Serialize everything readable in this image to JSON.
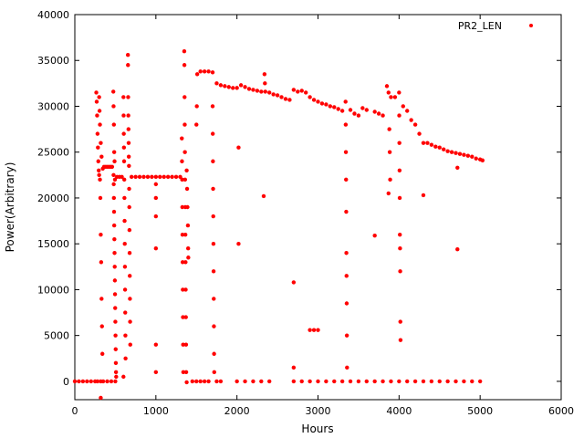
{
  "chart_data": {
    "type": "scatter",
    "xlabel": "Hours",
    "ylabel": "Power(Arbitrary)",
    "xlim": [
      0,
      6000
    ],
    "ylim": [
      -2000,
      40000
    ],
    "x_ticks": [
      0,
      1000,
      2000,
      3000,
      4000,
      5000,
      6000
    ],
    "y_ticks": [
      0,
      5000,
      10000,
      15000,
      20000,
      25000,
      30000,
      35000,
      40000
    ],
    "x_tick_labels": [
      "0",
      "1000",
      "2000",
      "3000",
      "4000",
      "5000",
      "6000"
    ],
    "y_tick_labels": [
      "0",
      "5000",
      "10000",
      "15000",
      "20000",
      "25000",
      "30000",
      "35000",
      "40000"
    ],
    "grid": false,
    "legend_position": "top-right",
    "colors": {
      "series": "#ff0000",
      "axis": "#000000"
    },
    "series": [
      {
        "name": "PR2_LEN",
        "marker": "point",
        "points": [
          [
            0,
            0
          ],
          [
            50,
            0
          ],
          [
            100,
            0
          ],
          [
            150,
            0
          ],
          [
            200,
            0
          ],
          [
            250,
            0
          ],
          [
            280,
            0
          ],
          [
            320,
            0
          ],
          [
            350,
            0
          ],
          [
            400,
            0
          ],
          [
            450,
            0
          ],
          [
            500,
            0
          ],
          [
            265,
            31500
          ],
          [
            270,
            30500
          ],
          [
            275,
            29000
          ],
          [
            280,
            27000
          ],
          [
            285,
            25500
          ],
          [
            290,
            24000
          ],
          [
            295,
            23000
          ],
          [
            300,
            22500
          ],
          [
            310,
            22000
          ],
          [
            315,
            20000
          ],
          [
            320,
            16000
          ],
          [
            325,
            13000
          ],
          [
            330,
            9000
          ],
          [
            335,
            6000
          ],
          [
            340,
            3000
          ],
          [
            300,
            31000
          ],
          [
            305,
            29500
          ],
          [
            310,
            28000
          ],
          [
            320,
            26000
          ],
          [
            330,
            24500
          ],
          [
            345,
            23200
          ],
          [
            360,
            23400
          ],
          [
            380,
            23400
          ],
          [
            400,
            23400
          ],
          [
            420,
            23400
          ],
          [
            440,
            23400
          ],
          [
            460,
            23400
          ],
          [
            478,
            22500
          ],
          [
            480,
            21500
          ],
          [
            482,
            20000
          ],
          [
            484,
            18500
          ],
          [
            486,
            17000
          ],
          [
            488,
            15500
          ],
          [
            490,
            14000
          ],
          [
            492,
            12500
          ],
          [
            494,
            11000
          ],
          [
            496,
            9500
          ],
          [
            498,
            8000
          ],
          [
            500,
            6500
          ],
          [
            502,
            5000
          ],
          [
            504,
            3500
          ],
          [
            506,
            2000
          ],
          [
            508,
            1000
          ],
          [
            510,
            500
          ],
          [
            475,
            31600
          ],
          [
            478,
            30000
          ],
          [
            482,
            28000
          ],
          [
            486,
            25000
          ],
          [
            490,
            24000
          ],
          [
            495,
            22000
          ],
          [
            520,
            22300
          ],
          [
            550,
            22300
          ],
          [
            580,
            22300
          ],
          [
            600,
            31000
          ],
          [
            602,
            29000
          ],
          [
            604,
            27000
          ],
          [
            606,
            25500
          ],
          [
            608,
            24000
          ],
          [
            610,
            22000
          ],
          [
            612,
            20000
          ],
          [
            614,
            17500
          ],
          [
            616,
            15000
          ],
          [
            618,
            12500
          ],
          [
            620,
            10000
          ],
          [
            622,
            7500
          ],
          [
            624,
            5000
          ],
          [
            626,
            2500
          ],
          [
            655,
            35600
          ],
          [
            656,
            34500
          ],
          [
            658,
            31000
          ],
          [
            660,
            29000
          ],
          [
            662,
            27500
          ],
          [
            664,
            26000
          ],
          [
            666,
            24500
          ],
          [
            668,
            23500
          ],
          [
            670,
            21000
          ],
          [
            672,
            19000
          ],
          [
            674,
            16500
          ],
          [
            676,
            14000
          ],
          [
            678,
            11500
          ],
          [
            680,
            9000
          ],
          [
            682,
            6500
          ],
          [
            684,
            4000
          ],
          [
            700,
            22300
          ],
          [
            750,
            22300
          ],
          [
            800,
            22300
          ],
          [
            850,
            22300
          ],
          [
            900,
            22300
          ],
          [
            950,
            22300
          ],
          [
            1000,
            22300
          ],
          [
            1050,
            22300
          ],
          [
            1100,
            22300
          ],
          [
            1150,
            22300
          ],
          [
            1200,
            22300
          ],
          [
            1250,
            22300
          ],
          [
            1300,
            22300
          ],
          [
            1000,
            1000
          ],
          [
            1000,
            4000
          ],
          [
            1000,
            14500
          ],
          [
            1000,
            18000
          ],
          [
            1000,
            20000
          ],
          [
            1000,
            21500
          ],
          [
            1320,
            26500
          ],
          [
            1322,
            24000
          ],
          [
            1324,
            22000
          ],
          [
            1326,
            19000
          ],
          [
            1328,
            16000
          ],
          [
            1330,
            13000
          ],
          [
            1332,
            10000
          ],
          [
            1334,
            7000
          ],
          [
            1336,
            4000
          ],
          [
            1338,
            1000
          ],
          [
            1350,
            36000
          ],
          [
            1352,
            34500
          ],
          [
            1354,
            31000
          ],
          [
            1356,
            28000
          ],
          [
            1358,
            25000
          ],
          [
            1360,
            22000
          ],
          [
            1362,
            19000
          ],
          [
            1364,
            16000
          ],
          [
            1366,
            13000
          ],
          [
            1368,
            10000
          ],
          [
            1370,
            7000
          ],
          [
            1372,
            4000
          ],
          [
            1374,
            1000
          ],
          [
            1380,
            23000
          ],
          [
            1385,
            21000
          ],
          [
            1390,
            19000
          ],
          [
            1395,
            17000
          ],
          [
            1398,
            14500
          ],
          [
            1400,
            13500
          ],
          [
            1450,
            0
          ],
          [
            1500,
            0
          ],
          [
            1550,
            0
          ],
          [
            1600,
            0
          ],
          [
            1650,
            0
          ],
          [
            1500,
            28000
          ],
          [
            1505,
            30000
          ],
          [
            1510,
            33500
          ],
          [
            1550,
            33800
          ],
          [
            1600,
            33800
          ],
          [
            1650,
            33800
          ],
          [
            1700,
            33700
          ],
          [
            1700,
            30000
          ],
          [
            1702,
            27000
          ],
          [
            1704,
            24000
          ],
          [
            1706,
            21000
          ],
          [
            1708,
            18000
          ],
          [
            1710,
            15000
          ],
          [
            1712,
            12000
          ],
          [
            1714,
            9000
          ],
          [
            1716,
            6000
          ],
          [
            1718,
            3000
          ],
          [
            1720,
            1000
          ],
          [
            1750,
            32500
          ],
          [
            1800,
            32300
          ],
          [
            1850,
            32200
          ],
          [
            1900,
            32100
          ],
          [
            1950,
            32000
          ],
          [
            2000,
            32000
          ],
          [
            2050,
            32300
          ],
          [
            2100,
            32100
          ],
          [
            2150,
            31900
          ],
          [
            2200,
            31800
          ],
          [
            2250,
            31700
          ],
          [
            2300,
            31600
          ],
          [
            2340,
            33500
          ],
          [
            2345,
            32500
          ],
          [
            2350,
            31600
          ],
          [
            2400,
            31500
          ],
          [
            2450,
            31300
          ],
          [
            2500,
            31200
          ],
          [
            2550,
            31000
          ],
          [
            2600,
            30800
          ],
          [
            2650,
            30700
          ],
          [
            2700,
            31800
          ],
          [
            2750,
            31600
          ],
          [
            2800,
            31700
          ],
          [
            2850,
            31500
          ],
          [
            2900,
            31000
          ],
          [
            2950,
            30700
          ],
          [
            3000,
            30500
          ],
          [
            3050,
            30300
          ],
          [
            3100,
            30200
          ],
          [
            3150,
            30000
          ],
          [
            3200,
            29900
          ],
          [
            3250,
            29700
          ],
          [
            3300,
            29500
          ],
          [
            2020,
            25500
          ],
          [
            2020,
            15000
          ],
          [
            2330,
            20200
          ],
          [
            2700,
            10800
          ],
          [
            2700,
            1500
          ],
          [
            2900,
            5600
          ],
          [
            2950,
            5600
          ],
          [
            3000,
            5600
          ],
          [
            3340,
            30500
          ],
          [
            3342,
            28000
          ],
          [
            3344,
            25000
          ],
          [
            3346,
            22000
          ],
          [
            3348,
            18500
          ],
          [
            3350,
            14000
          ],
          [
            3352,
            11500
          ],
          [
            3354,
            8500
          ],
          [
            3356,
            5000
          ],
          [
            3358,
            1500
          ],
          [
            3400,
            29600
          ],
          [
            3450,
            29200
          ],
          [
            3500,
            29000
          ],
          [
            3550,
            29800
          ],
          [
            3600,
            29600
          ],
          [
            3700,
            29400
          ],
          [
            3750,
            29200
          ],
          [
            3800,
            29000
          ],
          [
            3850,
            32200
          ],
          [
            3870,
            31500
          ],
          [
            3900,
            31000
          ],
          [
            3950,
            31000
          ],
          [
            3880,
            27500
          ],
          [
            3885,
            25000
          ],
          [
            3890,
            22000
          ],
          [
            3870,
            20500
          ],
          [
            4000,
            31500
          ],
          [
            4002,
            29000
          ],
          [
            4004,
            26000
          ],
          [
            4006,
            23000
          ],
          [
            4008,
            20000
          ],
          [
            4010,
            16000
          ],
          [
            4012,
            14500
          ],
          [
            4014,
            12000
          ],
          [
            4016,
            6500
          ],
          [
            4018,
            4500
          ],
          [
            4050,
            30000
          ],
          [
            4100,
            29500
          ],
          [
            4150,
            28500
          ],
          [
            4200,
            28000
          ],
          [
            4250,
            27000
          ],
          [
            4300,
            26000
          ],
          [
            4350,
            26000
          ],
          [
            4400,
            25800
          ],
          [
            4450,
            25600
          ],
          [
            4500,
            25500
          ],
          [
            4550,
            25300
          ],
          [
            4600,
            25100
          ],
          [
            4650,
            25000
          ],
          [
            4700,
            24900
          ],
          [
            4750,
            24800
          ],
          [
            4800,
            24700
          ],
          [
            4850,
            24600
          ],
          [
            4900,
            24500
          ],
          [
            4950,
            24300
          ],
          [
            5000,
            24200
          ],
          [
            5030,
            24100
          ],
          [
            3700,
            15900
          ],
          [
            4300,
            20300
          ],
          [
            4720,
            14400
          ],
          [
            4720,
            23300
          ],
          [
            1750,
            0
          ],
          [
            1800,
            0
          ],
          [
            2000,
            0
          ],
          [
            2100,
            0
          ],
          [
            2200,
            0
          ],
          [
            2300,
            0
          ],
          [
            2400,
            0
          ],
          [
            2700,
            0
          ],
          [
            2800,
            0
          ],
          [
            2900,
            0
          ],
          [
            3000,
            0
          ],
          [
            3100,
            0
          ],
          [
            3200,
            0
          ],
          [
            3300,
            0
          ],
          [
            3400,
            0
          ],
          [
            3500,
            0
          ],
          [
            3600,
            0
          ],
          [
            3700,
            0
          ],
          [
            3800,
            0
          ],
          [
            3900,
            0
          ],
          [
            4000,
            0
          ],
          [
            4100,
            0
          ],
          [
            4200,
            0
          ],
          [
            4300,
            0
          ],
          [
            4400,
            0
          ],
          [
            4500,
            0
          ],
          [
            4600,
            0
          ],
          [
            4700,
            0
          ],
          [
            4800,
            0
          ],
          [
            4900,
            0
          ],
          [
            5000,
            0
          ],
          [
            320,
            -1800
          ],
          [
            600,
            500
          ],
          [
            1380,
            -100
          ]
        ]
      }
    ]
  }
}
